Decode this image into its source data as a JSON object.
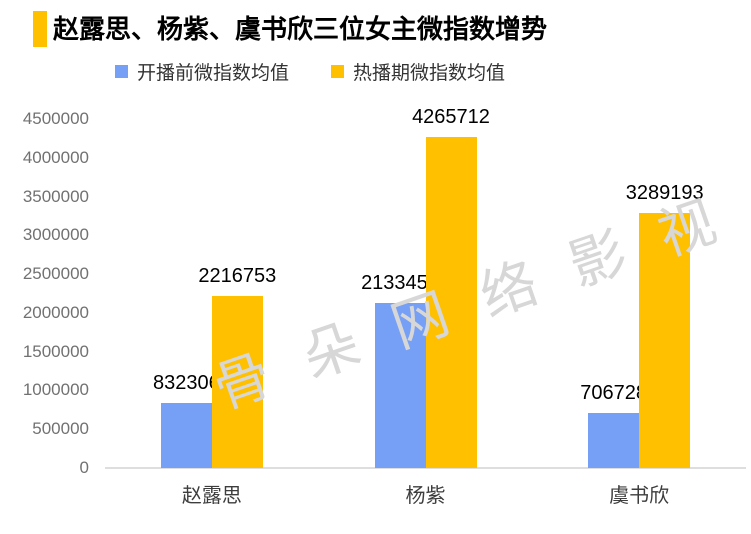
{
  "title": {
    "text": "赵露思、杨紫、虞书欣三位女主微指数增势"
  },
  "legend": {
    "items": [
      {
        "label": "开播前微指数均值",
        "color": "#76A0F5"
      },
      {
        "label": "热播期微指数均值",
        "color": "#FFC000"
      }
    ]
  },
  "watermark": {
    "text": "骨朵网络影视"
  },
  "colors": {
    "accent_bar": "#FFC000",
    "series_pre_launch": "#76A0F5",
    "series_hot_airing": "#FFC000",
    "axis_tick_label": "#717171",
    "category_label": "#3d3d3d",
    "value_label": "#000000",
    "baseline": "#dedede",
    "watermark": "#d7d7d7",
    "background": "#ffffff"
  },
  "chart_data": {
    "type": "bar",
    "title": "赵露思、杨紫、虞书欣三位女主微指数增势",
    "categories": [
      "赵露思",
      "杨紫",
      "虞书欣"
    ],
    "series": [
      {
        "name": "开播前微指数均值",
        "color": "#76A0F5",
        "values": [
          832306,
          2133457,
          706728
        ]
      },
      {
        "name": "热播期微指数均值",
        "color": "#FFC000",
        "values": [
          2216753,
          4265712,
          3289193
        ]
      }
    ],
    "ylim": [
      0,
      4500000
    ],
    "ytick_step": 500000,
    "ytick_labels": [
      "0",
      "500000",
      "1000000",
      "1500000",
      "2000000",
      "2500000",
      "3000000",
      "3500000",
      "4000000",
      "4500000"
    ],
    "xlabel": "",
    "ylabel": "",
    "grid": false,
    "legend_position": "top",
    "value_labels_shown": true
  }
}
